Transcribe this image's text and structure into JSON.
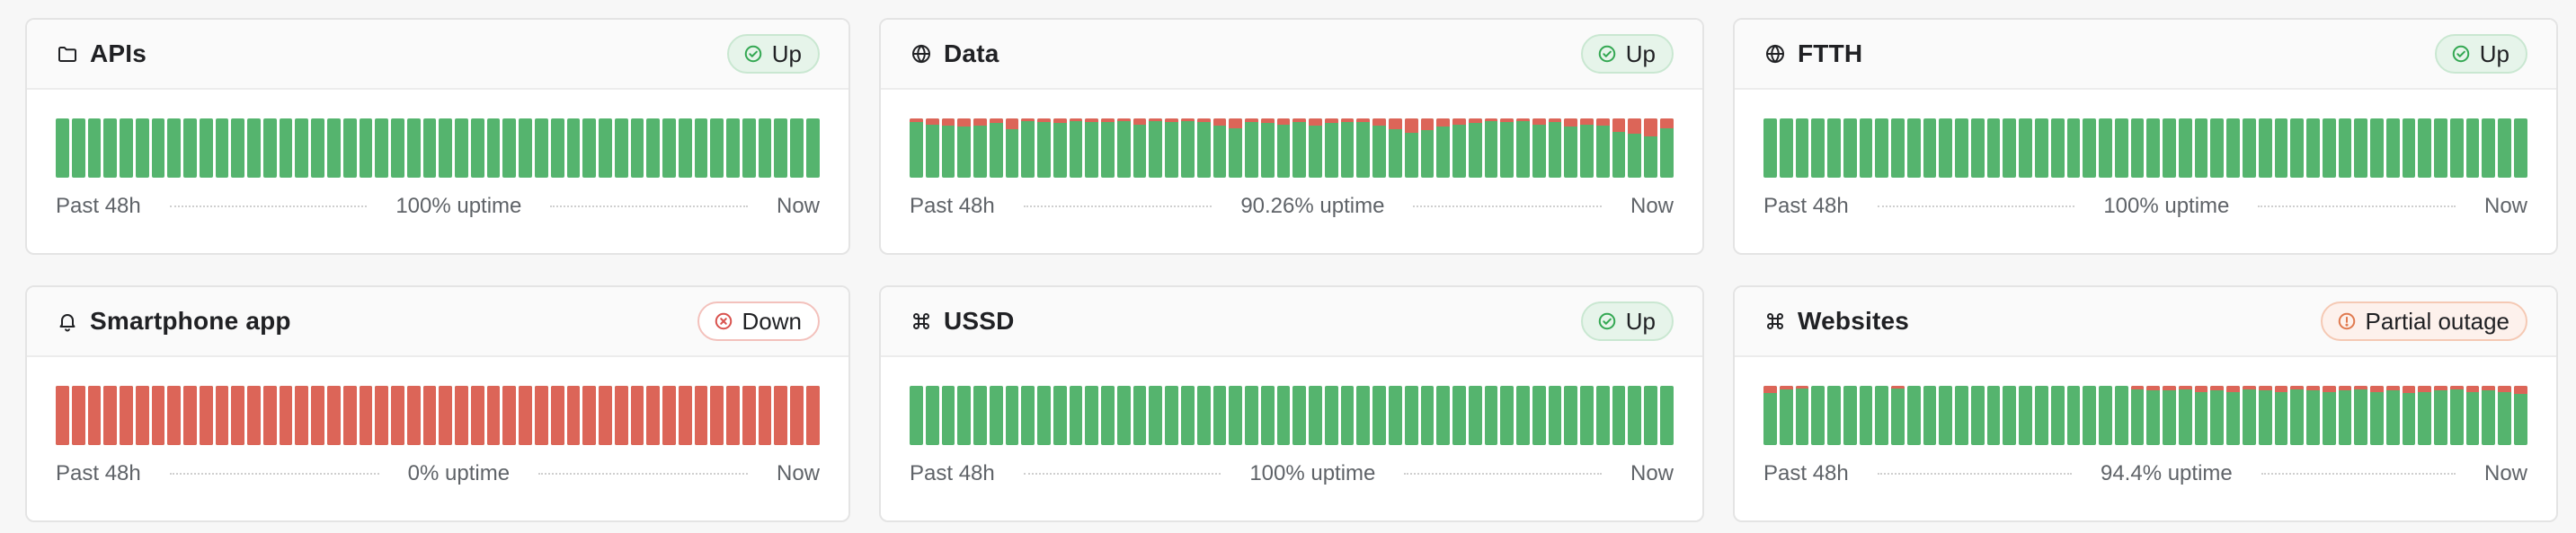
{
  "colors": {
    "up": "#55b46e",
    "down": "#dc6558",
    "partial_accent": "#e07a4f",
    "up_accent": "#34a853"
  },
  "monitors": [
    {
      "title": "APIs",
      "icon": "folder-icon",
      "status": {
        "label": "Up",
        "kind": "up",
        "icon": "check-circle-icon"
      },
      "left": "Past 48h",
      "uptime": "100% uptime",
      "right": "Now",
      "bars": [
        0,
        0,
        0,
        0,
        0,
        0,
        0,
        0,
        0,
        0,
        0,
        0,
        0,
        0,
        0,
        0,
        0,
        0,
        0,
        0,
        0,
        0,
        0,
        0,
        0,
        0,
        0,
        0,
        0,
        0,
        0,
        0,
        0,
        0,
        0,
        0,
        0,
        0,
        0,
        0,
        0,
        0,
        0,
        0,
        0,
        0,
        0,
        0
      ]
    },
    {
      "title": "Data",
      "icon": "globe-icon",
      "status": {
        "label": "Up",
        "kind": "up",
        "icon": "check-circle-icon"
      },
      "left": "Past 48h",
      "uptime": "90.26% uptime",
      "right": "Now",
      "bars": [
        0.06,
        0.1,
        0.12,
        0.14,
        0.12,
        0.08,
        0.18,
        0.04,
        0.06,
        0.08,
        0.04,
        0.06,
        0.06,
        0.04,
        0.1,
        0.04,
        0.06,
        0.04,
        0.06,
        0.12,
        0.16,
        0.06,
        0.08,
        0.1,
        0.06,
        0.12,
        0.08,
        0.06,
        0.06,
        0.12,
        0.18,
        0.24,
        0.2,
        0.14,
        0.1,
        0.08,
        0.04,
        0.06,
        0.04,
        0.1,
        0.06,
        0.14,
        0.1,
        0.12,
        0.22,
        0.26,
        0.3,
        0.16
      ]
    },
    {
      "title": "FTTH",
      "icon": "globe-icon",
      "status": {
        "label": "Up",
        "kind": "up",
        "icon": "check-circle-icon"
      },
      "left": "Past 48h",
      "uptime": "100% uptime",
      "right": "Now",
      "bars": [
        0,
        0,
        0,
        0,
        0,
        0,
        0,
        0,
        0,
        0,
        0,
        0,
        0,
        0,
        0,
        0,
        0,
        0,
        0,
        0,
        0,
        0,
        0,
        0,
        0,
        0,
        0,
        0,
        0,
        0,
        0,
        0,
        0,
        0,
        0,
        0,
        0,
        0,
        0,
        0,
        0,
        0,
        0,
        0,
        0,
        0,
        0,
        0
      ]
    },
    {
      "title": "Smartphone app",
      "icon": "bell-icon",
      "status": {
        "label": "Down",
        "kind": "down",
        "icon": "x-circle-icon"
      },
      "left": "Past 48h",
      "uptime": "0% uptime",
      "right": "Now",
      "bars": [
        1,
        1,
        1,
        1,
        1,
        1,
        1,
        1,
        1,
        1,
        1,
        1,
        1,
        1,
        1,
        1,
        1,
        1,
        1,
        1,
        1,
        1,
        1,
        1,
        1,
        1,
        1,
        1,
        1,
        1,
        1,
        1,
        1,
        1,
        1,
        1,
        1,
        1,
        1,
        1,
        1,
        1,
        1,
        1,
        1,
        1,
        1,
        1
      ]
    },
    {
      "title": "USSD",
      "icon": "command-icon",
      "status": {
        "label": "Up",
        "kind": "up",
        "icon": "check-circle-icon"
      },
      "left": "Past 48h",
      "uptime": "100% uptime",
      "right": "Now",
      "bars": [
        0,
        0,
        0,
        0,
        0,
        0,
        0,
        0,
        0,
        0,
        0,
        0,
        0,
        0,
        0,
        0,
        0,
        0,
        0,
        0,
        0,
        0,
        0,
        0,
        0,
        0,
        0,
        0,
        0,
        0,
        0,
        0,
        0,
        0,
        0,
        0,
        0,
        0,
        0,
        0,
        0,
        0,
        0,
        0,
        0,
        0,
        0,
        0
      ]
    },
    {
      "title": "Websites",
      "icon": "command-icon",
      "status": {
        "label": "Partial outage",
        "kind": "partial",
        "icon": "alert-circle-icon"
      },
      "left": "Past 48h",
      "uptime": "94.4% uptime",
      "right": "Now",
      "bars": [
        0.12,
        0.06,
        0.04,
        0,
        0,
        0,
        0,
        0,
        0.04,
        0,
        0,
        0,
        0,
        0,
        0,
        0,
        0,
        0,
        0,
        0,
        0,
        0,
        0,
        0.06,
        0.08,
        0.08,
        0.06,
        0.1,
        0.08,
        0.1,
        0.06,
        0.08,
        0.1,
        0.06,
        0.08,
        0.1,
        0.08,
        0.06,
        0.1,
        0.08,
        0.12,
        0.1,
        0.08,
        0.06,
        0.1,
        0.08,
        0.1,
        0.14
      ]
    }
  ]
}
